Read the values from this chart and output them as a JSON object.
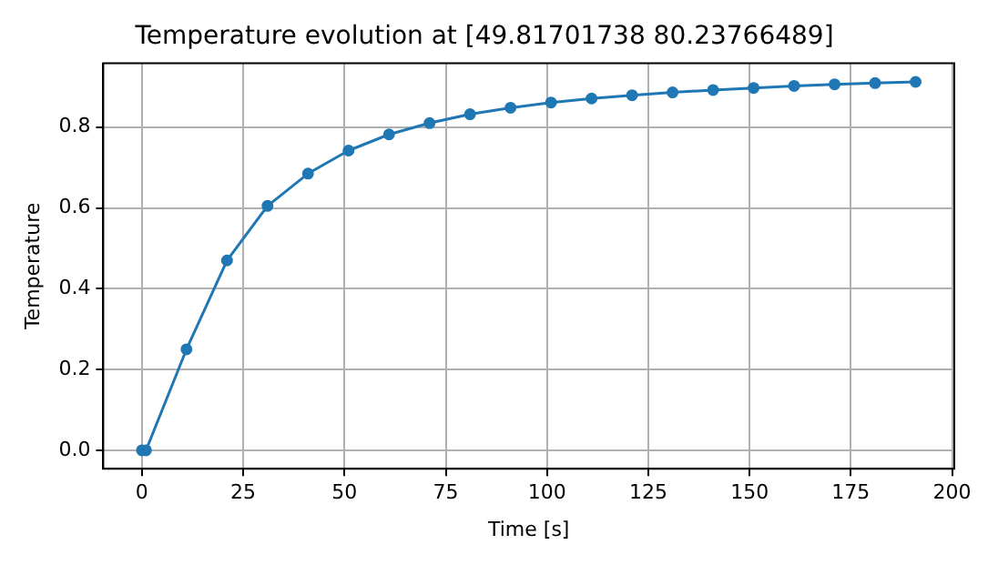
{
  "chart_data": {
    "type": "line",
    "title": "Temperature evolution at [49.81701738 80.23766489]",
    "xlabel": "Time [s]",
    "ylabel": "Temperature",
    "x": [
      0,
      1,
      11,
      21,
      31,
      41,
      51,
      61,
      71,
      81,
      91,
      101,
      111,
      121,
      131,
      141,
      151,
      161,
      171,
      181,
      191
    ],
    "series": [
      {
        "color": "#1f77b4",
        "values": [
          0,
          0,
          0.25,
          0.47,
          0.605,
          0.685,
          0.742,
          0.782,
          0.81,
          0.832,
          0.848,
          0.861,
          0.871,
          0.879,
          0.886,
          0.892,
          0.897,
          0.902,
          0.906,
          0.909,
          0.912
        ]
      }
    ],
    "xlim": [
      -9.55,
      200.55
    ],
    "ylim": [
      -0.0456,
      0.958
    ],
    "xticks": [
      0,
      25,
      50,
      75,
      100,
      125,
      150,
      175,
      200
    ],
    "yticks": [
      {
        "value": 0,
        "label": "0.0"
      },
      {
        "value": 0.2,
        "label": "0.2"
      },
      {
        "value": 0.4,
        "label": "0.4"
      },
      {
        "value": 0.6,
        "label": "0.6"
      },
      {
        "value": 0.8,
        "label": "0.8"
      }
    ],
    "grid": true,
    "marker": "circle",
    "line_style": "solid",
    "legend": false
  }
}
